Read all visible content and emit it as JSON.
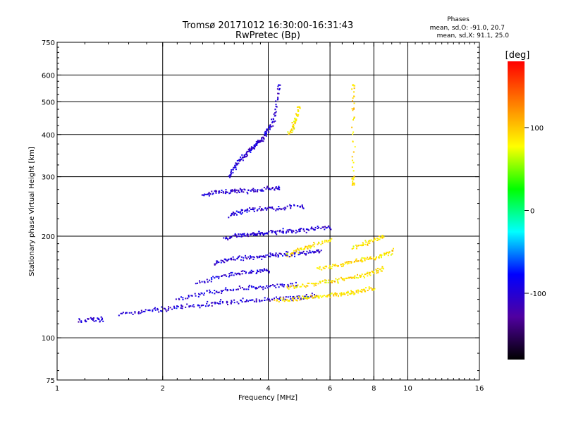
{
  "chart_data": {
    "type": "scatter",
    "title": "Tromsø 20171012 16:30:00-16:31:43",
    "subtitle": "RwPretec (Bp)",
    "xlabel": "Frequency [MHz]",
    "ylabel": "Stationary phase Virtual Height [km]",
    "x_scale": "log",
    "y_scale": "log",
    "xlim": [
      1,
      16
    ],
    "ylim": [
      75,
      750
    ],
    "x_ticks": [
      1,
      2,
      4,
      6,
      8,
      10,
      16
    ],
    "y_ticks": [
      75,
      100,
      200,
      300,
      400,
      500,
      600,
      750
    ],
    "x_gridlines": [
      2,
      4,
      6,
      8,
      10
    ],
    "y_gridlines": [
      100,
      200,
      300,
      400,
      500,
      600
    ],
    "grid": true,
    "phases_box": {
      "title": "Phases",
      "o_line": "mean, sd,O: -91.0, 20.7",
      "x_line": "mean, sd,X:  91.1, 25.0"
    },
    "colorbar": {
      "label": "[deg]",
      "range": [
        -180,
        180
      ],
      "ticks": [
        100,
        0,
        -100
      ],
      "colors": [
        "#ff0000",
        "#ff8000",
        "#ffff00",
        "#00ff00",
        "#00ffff",
        "#0000ff",
        "#5000a0",
        "#000000"
      ]
    },
    "series": [
      {
        "mode": "O",
        "phase_deg": -100,
        "traces": [
          {
            "x": [
              1.5,
              1.7,
              1.9,
              2.1,
              2.3,
              2.6,
              2.9,
              3.2,
              3.6,
              4.0,
              4.5,
              5.0,
              5.5
            ],
            "y": [
              118,
              119,
              121,
              122,
              124,
              125,
              127,
              128,
              129,
              130,
              131,
              132,
              133
            ]
          },
          {
            "x": [
              2.2,
              2.5,
              2.8,
              3.1,
              3.5,
              3.9,
              4.3,
              4.8
            ],
            "y": [
              130,
              134,
              137,
              139,
              141,
              142,
              143,
              144
            ]
          },
          {
            "x": [
              2.5,
              2.8,
              3.1,
              3.4,
              3.7,
              4.0
            ],
            "y": [
              145,
              150,
              154,
              156,
              157,
              158
            ]
          },
          {
            "x": [
              2.8,
              3.0,
              3.2,
              3.5,
              3.8,
              4.1,
              4.4,
              4.8,
              5.2,
              5.6
            ],
            "y": [
              165,
              170,
              172,
              173,
              174,
              175,
              176,
              177,
              178,
              180
            ]
          },
          {
            "x": [
              3.0,
              3.2,
              3.4,
              3.6,
              3.8,
              4.0,
              4.3,
              4.6,
              5.0,
              5.4,
              6.0
            ],
            "y": [
              195,
              200,
              202,
              203,
              204,
              205,
              206,
              207,
              208,
              210,
              212
            ]
          },
          {
            "x": [
              3.1,
              3.3,
              3.5,
              3.8,
              4.1,
              4.5,
              5.0
            ],
            "y": [
              230,
              236,
              239,
              240,
              242,
              243,
              245
            ]
          },
          {
            "x": [
              2.6,
              2.8,
              3.0,
              3.2,
              3.4,
              3.7,
              4.0,
              4.3
            ],
            "y": [
              265,
              268,
              270,
              272,
              272,
              274,
              276,
              278
            ]
          },
          {
            "x": [
              3.1,
              3.2,
              3.3,
              3.4,
              3.5,
              3.6,
              3.7,
              3.8,
              3.9,
              4.0,
              4.1,
              4.2,
              4.3
            ],
            "y": [
              300,
              320,
              335,
              345,
              355,
              365,
              375,
              385,
              395,
              410,
              430,
              470,
              560
            ]
          },
          {
            "x": [
              1.15,
              1.25,
              1.35
            ],
            "y": [
              112,
              114,
              113
            ]
          }
        ]
      },
      {
        "mode": "X",
        "phase_deg": 90,
        "traces": [
          {
            "x": [
              4.2,
              4.6,
              5.0,
              5.4,
              5.8,
              6.2,
              6.6,
              7.0,
              7.5,
              8.0
            ],
            "y": [
              128,
              130,
              131,
              132,
              133,
              134,
              135,
              136,
              138,
              140
            ]
          },
          {
            "x": [
              4.5,
              5.0,
              5.5,
              6.0,
              6.5,
              7.0,
              7.5,
              8.0,
              8.5
            ],
            "y": [
              140,
              143,
              145,
              147,
              149,
              151,
              153,
              156,
              160
            ]
          },
          {
            "x": [
              5.5,
              6.0,
              6.5,
              7.0,
              7.5,
              8.0,
              8.5,
              9.0
            ],
            "y": [
              160,
              162,
              165,
              168,
              170,
              172,
              175,
              180
            ]
          },
          {
            "x": [
              4.5,
              4.8,
              5.1,
              5.5,
              6.0
            ],
            "y": [
              175,
              180,
              185,
              190,
              195
            ]
          },
          {
            "x": [
              7.0,
              7.5,
              8.0,
              8.5
            ],
            "y": [
              185,
              190,
              195,
              200
            ]
          },
          {
            "x": [
              4.6,
              4.7,
              4.8,
              4.9
            ],
            "y": [
              400,
              420,
              450,
              480
            ]
          },
          {
            "x": [
              7.0,
              7.0,
              7.0,
              7.0
            ],
            "y": [
              280,
              300,
              450,
              560
            ]
          }
        ]
      }
    ]
  }
}
